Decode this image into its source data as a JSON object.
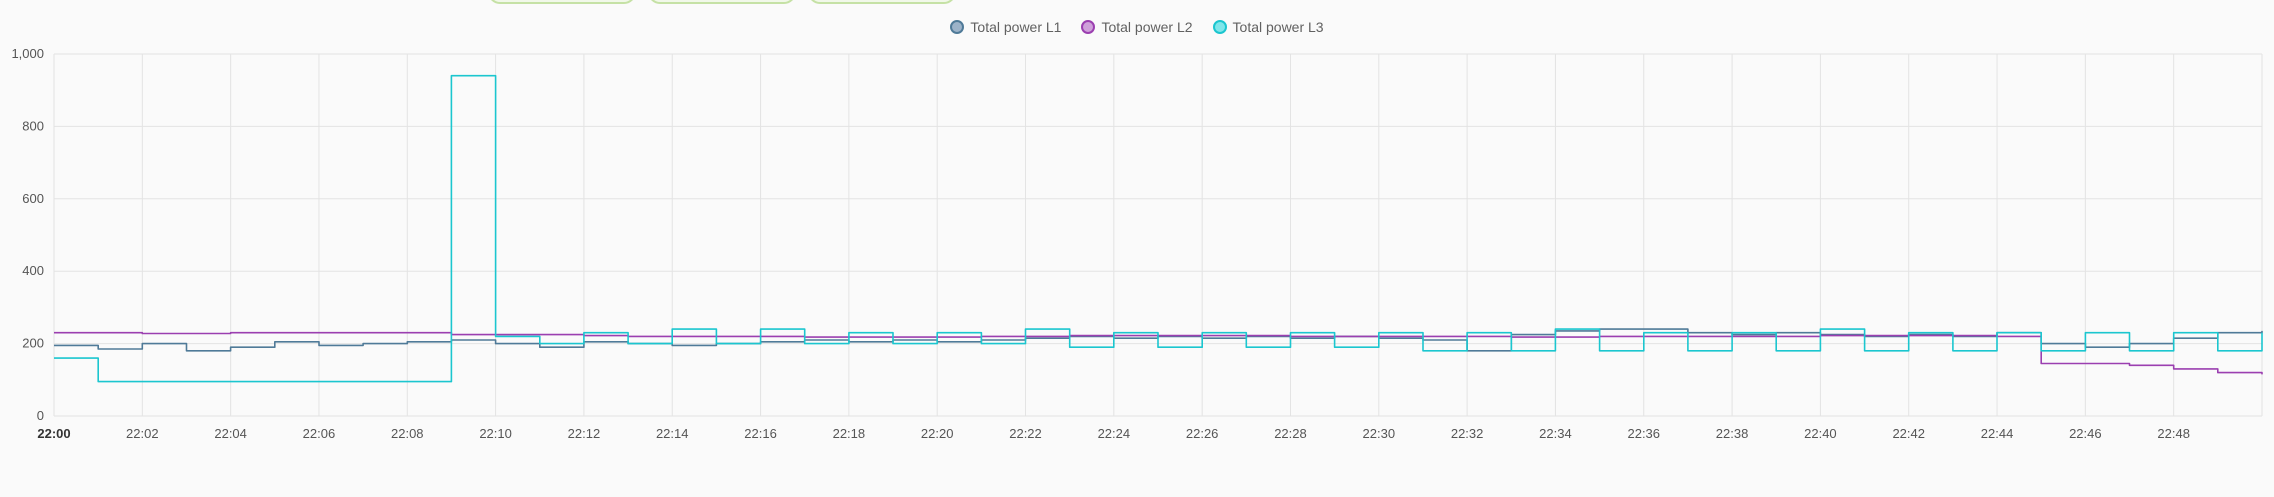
{
  "legend": {
    "items": [
      {
        "label": "Total power L1",
        "color": "#4f7a98",
        "fill": "#9cb3c9"
      },
      {
        "label": "Total power L2",
        "color": "#9b3fb0",
        "fill": "#cfa0da"
      },
      {
        "label": "Total power L3",
        "color": "#1bc6cf",
        "fill": "#7fe6ea"
      }
    ]
  },
  "chart_data": {
    "type": "line",
    "title": "",
    "xlabel": "",
    "ylabel": "",
    "ylim": [
      0,
      1000
    ],
    "xlim": [
      "22:00",
      "22:50"
    ],
    "grid": true,
    "legend_position": "top-center",
    "y_ticks": [
      "0",
      "200",
      "400",
      "600",
      "800",
      "1,000"
    ],
    "x_ticks": [
      "22:00",
      "22:02",
      "22:04",
      "22:06",
      "22:08",
      "22:10",
      "22:12",
      "22:14",
      "22:16",
      "22:18",
      "22:20",
      "22:22",
      "22:24",
      "22:26",
      "22:28",
      "22:30",
      "22:32",
      "22:34",
      "22:36",
      "22:38",
      "22:40",
      "22:42",
      "22:44",
      "22:46",
      "22:48"
    ],
    "series": [
      {
        "name": "Total power L1",
        "color": "#4f7a98",
        "x": [
          "22:00",
          "22:01",
          "22:02",
          "22:03",
          "22:04",
          "22:05",
          "22:06",
          "22:07",
          "22:08",
          "22:09",
          "22:10",
          "22:11",
          "22:12",
          "22:13",
          "22:14",
          "22:15",
          "22:16",
          "22:17",
          "22:18",
          "22:19",
          "22:20",
          "22:21",
          "22:22",
          "22:23",
          "22:24",
          "22:25",
          "22:26",
          "22:27",
          "22:28",
          "22:29",
          "22:30",
          "22:31",
          "22:32",
          "22:33",
          "22:34",
          "22:35",
          "22:36",
          "22:37",
          "22:38",
          "22:39",
          "22:40",
          "22:41",
          "22:42",
          "22:43",
          "22:44",
          "22:45",
          "22:46",
          "22:47",
          "22:48",
          "22:49",
          "22:50"
        ],
        "y": [
          195,
          185,
          200,
          180,
          190,
          205,
          195,
          200,
          205,
          210,
          200,
          190,
          205,
          200,
          195,
          200,
          205,
          210,
          205,
          210,
          205,
          210,
          215,
          220,
          215,
          220,
          215,
          220,
          215,
          220,
          215,
          210,
          180,
          225,
          235,
          240,
          240,
          230,
          225,
          230,
          225,
          220,
          225,
          220,
          230,
          200,
          190,
          200,
          215,
          230,
          235
        ]
      },
      {
        "name": "Total power L2",
        "color": "#9b3fb0",
        "x": [
          "22:00",
          "22:01",
          "22:02",
          "22:03",
          "22:04",
          "22:05",
          "22:06",
          "22:07",
          "22:08",
          "22:09",
          "22:10",
          "22:11",
          "22:12",
          "22:13",
          "22:14",
          "22:15",
          "22:16",
          "22:17",
          "22:18",
          "22:19",
          "22:20",
          "22:21",
          "22:22",
          "22:23",
          "22:24",
          "22:25",
          "22:26",
          "22:27",
          "22:28",
          "22:29",
          "22:30",
          "22:31",
          "22:32",
          "22:33",
          "22:34",
          "22:35",
          "22:36",
          "22:37",
          "22:38",
          "22:39",
          "22:40",
          "22:41",
          "22:42",
          "22:43",
          "22:44",
          "22:45",
          "22:46",
          "22:47",
          "22:48",
          "22:49",
          "22:50"
        ],
        "y": [
          230,
          230,
          228,
          228,
          230,
          230,
          230,
          230,
          230,
          225,
          225,
          225,
          222,
          220,
          220,
          220,
          220,
          218,
          218,
          218,
          218,
          220,
          220,
          222,
          222,
          222,
          222,
          222,
          220,
          220,
          220,
          220,
          220,
          218,
          218,
          220,
          220,
          220,
          220,
          220,
          222,
          222,
          222,
          222,
          220,
          145,
          145,
          140,
          130,
          120,
          115
        ]
      },
      {
        "name": "Total power L3",
        "color": "#1bc6cf",
        "x": [
          "22:00",
          "22:01",
          "22:02",
          "22:03",
          "22:04",
          "22:05",
          "22:06",
          "22:07",
          "22:08",
          "22:09",
          "22:09",
          "22:10",
          "22:11",
          "22:12",
          "22:13",
          "22:14",
          "22:15",
          "22:16",
          "22:17",
          "22:18",
          "22:19",
          "22:20",
          "22:21",
          "22:22",
          "22:23",
          "22:24",
          "22:25",
          "22:26",
          "22:27",
          "22:28",
          "22:29",
          "22:30",
          "22:31",
          "22:32",
          "22:33",
          "22:34",
          "22:35",
          "22:36",
          "22:37",
          "22:38",
          "22:39",
          "22:40",
          "22:41",
          "22:42",
          "22:43",
          "22:44",
          "22:45",
          "22:46",
          "22:47",
          "22:48",
          "22:49",
          "22:50"
        ],
        "y": [
          160,
          95,
          95,
          95,
          95,
          95,
          95,
          95,
          95,
          95,
          940,
          220,
          200,
          230,
          200,
          240,
          200,
          240,
          200,
          230,
          200,
          230,
          200,
          240,
          190,
          230,
          190,
          230,
          190,
          230,
          190,
          230,
          180,
          230,
          180,
          240,
          180,
          230,
          180,
          230,
          180,
          240,
          180,
          230,
          180,
          230,
          180,
          230,
          180,
          230,
          180,
          230
        ]
      }
    ]
  }
}
